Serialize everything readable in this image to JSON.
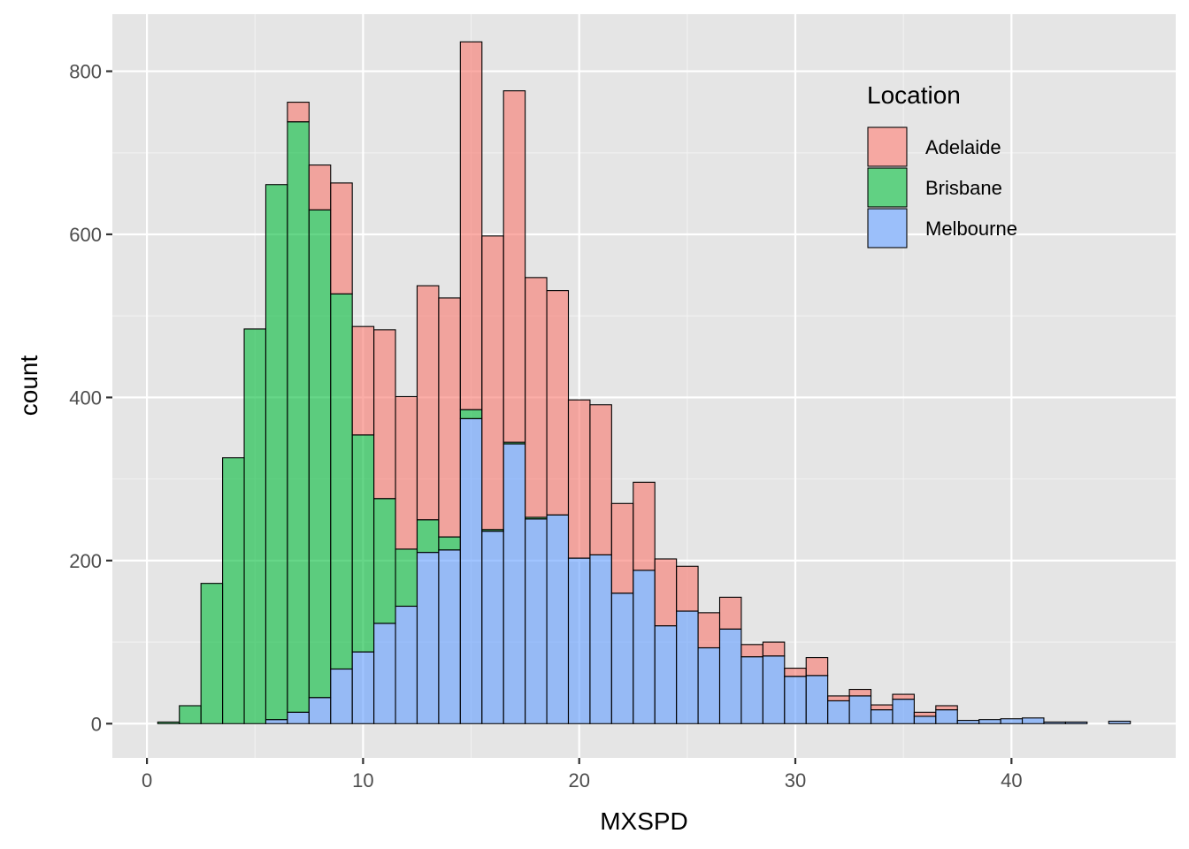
{
  "chart_data": {
    "type": "bar",
    "stacked": true,
    "histogram": true,
    "xlabel": "MXSPD",
    "ylabel": "count",
    "xlim": [
      -1.6,
      47.6
    ],
    "ylim": [
      -42,
      870
    ],
    "x_ticks": [
      0,
      10,
      20,
      30,
      40
    ],
    "y_ticks": [
      0,
      200,
      400,
      600,
      800
    ],
    "grid": true,
    "panel_background": "#E5E5E5",
    "legend": {
      "title": "Location",
      "placement": "top-right",
      "entries": [
        "Adelaide",
        "Brisbane",
        "Melbourne"
      ]
    },
    "bin_width": 1.0,
    "bin_centers": [
      1.0,
      2.0,
      3.0,
      4.0,
      5.0,
      6.0,
      7.0,
      8.0,
      9.0,
      10.0,
      11.0,
      12.0,
      13.0,
      14.0,
      15.0,
      16.0,
      17.0,
      18.0,
      19.0,
      20.0,
      21.0,
      22.0,
      23.0,
      24.0,
      25.0,
      26.0,
      27.0,
      28.0,
      29.0,
      30.0,
      31.0,
      32.0,
      33.0,
      34.0,
      35.0,
      36.0,
      37.0,
      38.0,
      39.0,
      40.0,
      41.0,
      42.0,
      43.0,
      44.0,
      45.0
    ],
    "series": [
      {
        "name": "Melbourne",
        "color": "#619CFF",
        "values": [
          0,
          0,
          0,
          0,
          0,
          5,
          14,
          32,
          67,
          88,
          123,
          144,
          210,
          213,
          374,
          236,
          343,
          251,
          256,
          203,
          207,
          160,
          188,
          120,
          138,
          93,
          116,
          82,
          83,
          58,
          59,
          28,
          34,
          17,
          30,
          9,
          17,
          4,
          5,
          6,
          7,
          2,
          2,
          0,
          3
        ]
      },
      {
        "name": "Brisbane",
        "color": "#00BA38",
        "values": [
          2,
          22,
          172,
          326,
          484,
          656,
          724,
          598,
          460,
          266,
          153,
          70,
          40,
          16,
          11,
          2,
          2,
          2,
          0,
          0,
          0,
          0,
          0,
          0,
          0,
          0,
          0,
          0,
          0,
          0,
          0,
          0,
          0,
          0,
          0,
          0,
          0,
          0,
          0,
          0,
          0,
          0,
          0,
          0,
          0
        ]
      },
      {
        "name": "Adelaide",
        "color": "#F8766D",
        "values": [
          0,
          0,
          0,
          0,
          0,
          0,
          24,
          55,
          136,
          133,
          207,
          187,
          287,
          293,
          451,
          360,
          431,
          294,
          275,
          194,
          184,
          110,
          108,
          82,
          55,
          43,
          39,
          15,
          17,
          10,
          22,
          6,
          8,
          6,
          6,
          5,
          5,
          0,
          0,
          0,
          0,
          0,
          0,
          0,
          0
        ]
      }
    ]
  }
}
